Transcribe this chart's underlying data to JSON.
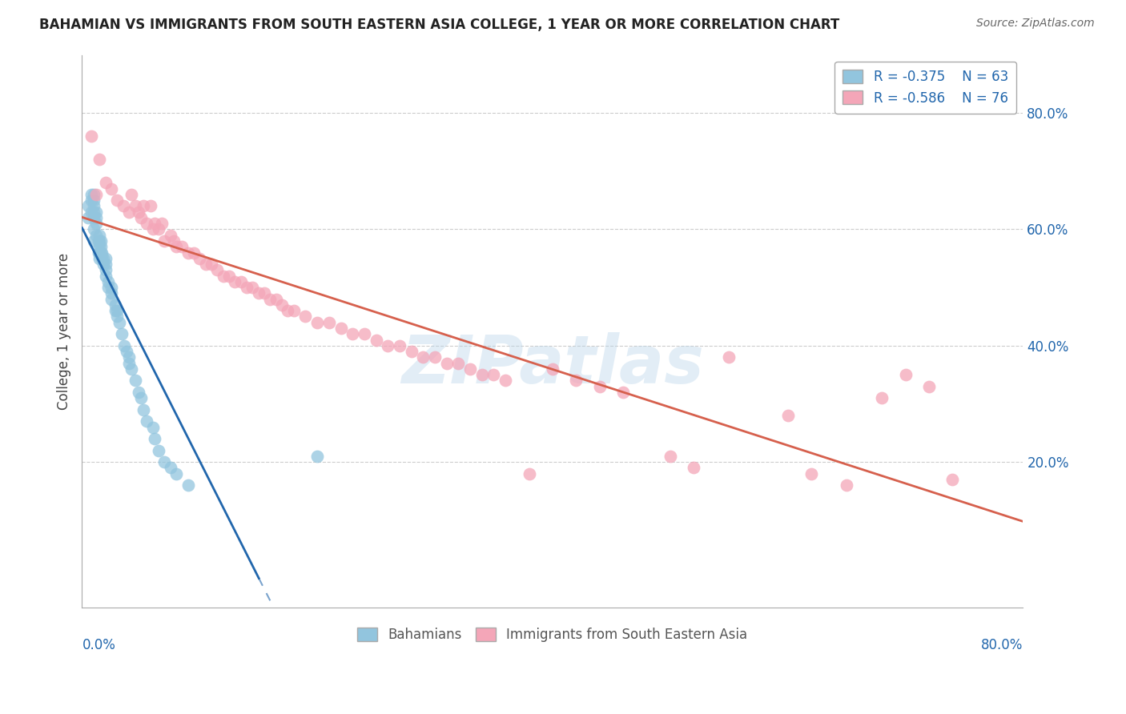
{
  "title": "BAHAMIAN VS IMMIGRANTS FROM SOUTH EASTERN ASIA COLLEGE, 1 YEAR OR MORE CORRELATION CHART",
  "source": "Source: ZipAtlas.com",
  "ylabel": "College, 1 year or more",
  "xlim": [
    0.0,
    0.8
  ],
  "ylim": [
    -0.05,
    0.9
  ],
  "plot_ylim": [
    0.0,
    0.9
  ],
  "grid_color": "#cccccc",
  "background_color": "#ffffff",
  "blue_color": "#92c5de",
  "pink_color": "#f4a6b8",
  "blue_line_color": "#2166ac",
  "pink_line_color": "#d6604d",
  "blue_R": -0.375,
  "blue_N": 63,
  "pink_R": -0.586,
  "pink_N": 76,
  "legend_label_blue": "Bahamians",
  "legend_label_pink": "Immigrants from South Eastern Asia",
  "watermark": "ZIPatlas",
  "blue_scatter_x": [
    0.005,
    0.005,
    0.008,
    0.008,
    0.008,
    0.01,
    0.01,
    0.01,
    0.01,
    0.01,
    0.01,
    0.01,
    0.012,
    0.012,
    0.012,
    0.012,
    0.014,
    0.014,
    0.015,
    0.015,
    0.015,
    0.015,
    0.015,
    0.016,
    0.016,
    0.016,
    0.017,
    0.017,
    0.018,
    0.018,
    0.02,
    0.02,
    0.02,
    0.02,
    0.022,
    0.022,
    0.025,
    0.025,
    0.025,
    0.028,
    0.028,
    0.03,
    0.03,
    0.032,
    0.034,
    0.036,
    0.038,
    0.04,
    0.04,
    0.042,
    0.045,
    0.048,
    0.05,
    0.052,
    0.055,
    0.06,
    0.062,
    0.065,
    0.07,
    0.075,
    0.08,
    0.09,
    0.2
  ],
  "blue_scatter_y": [
    0.62,
    0.64,
    0.63,
    0.65,
    0.66,
    0.58,
    0.6,
    0.62,
    0.63,
    0.64,
    0.65,
    0.66,
    0.59,
    0.61,
    0.62,
    0.63,
    0.56,
    0.58,
    0.55,
    0.56,
    0.57,
    0.58,
    0.59,
    0.56,
    0.57,
    0.58,
    0.55,
    0.56,
    0.54,
    0.55,
    0.52,
    0.53,
    0.54,
    0.55,
    0.5,
    0.51,
    0.48,
    0.49,
    0.5,
    0.46,
    0.47,
    0.45,
    0.46,
    0.44,
    0.42,
    0.4,
    0.39,
    0.37,
    0.38,
    0.36,
    0.34,
    0.32,
    0.31,
    0.29,
    0.27,
    0.26,
    0.24,
    0.22,
    0.2,
    0.19,
    0.18,
    0.16,
    0.21
  ],
  "pink_scatter_x": [
    0.008,
    0.012,
    0.015,
    0.02,
    0.025,
    0.03,
    0.035,
    0.04,
    0.042,
    0.045,
    0.048,
    0.05,
    0.052,
    0.055,
    0.058,
    0.06,
    0.062,
    0.065,
    0.068,
    0.07,
    0.075,
    0.078,
    0.08,
    0.085,
    0.09,
    0.095,
    0.1,
    0.105,
    0.11,
    0.115,
    0.12,
    0.125,
    0.13,
    0.135,
    0.14,
    0.145,
    0.15,
    0.155,
    0.16,
    0.165,
    0.17,
    0.175,
    0.18,
    0.19,
    0.2,
    0.21,
    0.22,
    0.23,
    0.24,
    0.25,
    0.26,
    0.27,
    0.28,
    0.29,
    0.3,
    0.31,
    0.32,
    0.33,
    0.34,
    0.35,
    0.36,
    0.38,
    0.4,
    0.42,
    0.44,
    0.46,
    0.5,
    0.52,
    0.55,
    0.6,
    0.62,
    0.65,
    0.68,
    0.7,
    0.72,
    0.74
  ],
  "pink_scatter_y": [
    0.76,
    0.66,
    0.72,
    0.68,
    0.67,
    0.65,
    0.64,
    0.63,
    0.66,
    0.64,
    0.63,
    0.62,
    0.64,
    0.61,
    0.64,
    0.6,
    0.61,
    0.6,
    0.61,
    0.58,
    0.59,
    0.58,
    0.57,
    0.57,
    0.56,
    0.56,
    0.55,
    0.54,
    0.54,
    0.53,
    0.52,
    0.52,
    0.51,
    0.51,
    0.5,
    0.5,
    0.49,
    0.49,
    0.48,
    0.48,
    0.47,
    0.46,
    0.46,
    0.45,
    0.44,
    0.44,
    0.43,
    0.42,
    0.42,
    0.41,
    0.4,
    0.4,
    0.39,
    0.38,
    0.38,
    0.37,
    0.37,
    0.36,
    0.35,
    0.35,
    0.34,
    0.18,
    0.36,
    0.34,
    0.33,
    0.32,
    0.21,
    0.19,
    0.38,
    0.28,
    0.18,
    0.16,
    0.31,
    0.35,
    0.33,
    0.17
  ]
}
